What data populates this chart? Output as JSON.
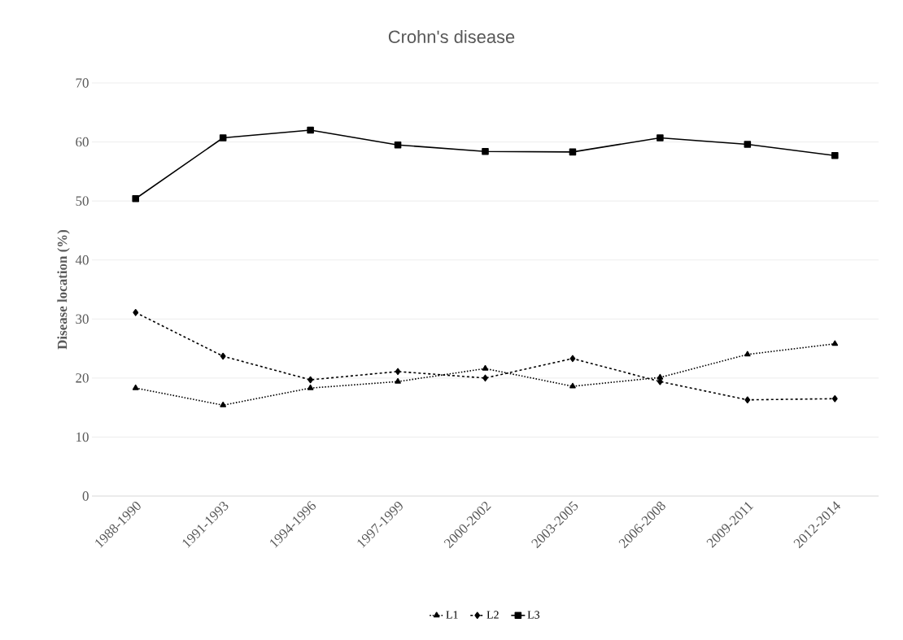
{
  "chart_data": {
    "type": "line",
    "title": "Crohn's disease",
    "ylabel": "Disease location (%)",
    "categories": [
      "1988-1990",
      "1991-1993",
      "1994-1996",
      "1997-1999",
      "2000-2002",
      "2003-2005",
      "2006-2008",
      "2009-2011",
      "2012-2014"
    ],
    "series": [
      {
        "name": "L1",
        "color": "#000000",
        "marker": "triangle",
        "line_style": "dotted",
        "values": [
          18.3,
          15.4,
          18.3,
          19.4,
          21.6,
          18.6,
          20.1,
          24.0,
          25.8
        ]
      },
      {
        "name": "L2",
        "color": "#000000",
        "marker": "diamond",
        "line_style": "dashed",
        "values": [
          31.1,
          23.7,
          19.7,
          21.1,
          20.0,
          23.3,
          19.4,
          16.3,
          16.5
        ]
      },
      {
        "name": "L3",
        "color": "#000000",
        "marker": "square",
        "line_style": "solid",
        "values": [
          50.4,
          60.7,
          62.0,
          59.5,
          58.4,
          58.3,
          60.7,
          59.6,
          57.7
        ]
      }
    ],
    "ylim": [
      0,
      70
    ],
    "yticks": [
      0,
      10,
      20,
      30,
      40,
      50,
      60,
      70
    ],
    "grid": "y",
    "legend": "bottom"
  }
}
